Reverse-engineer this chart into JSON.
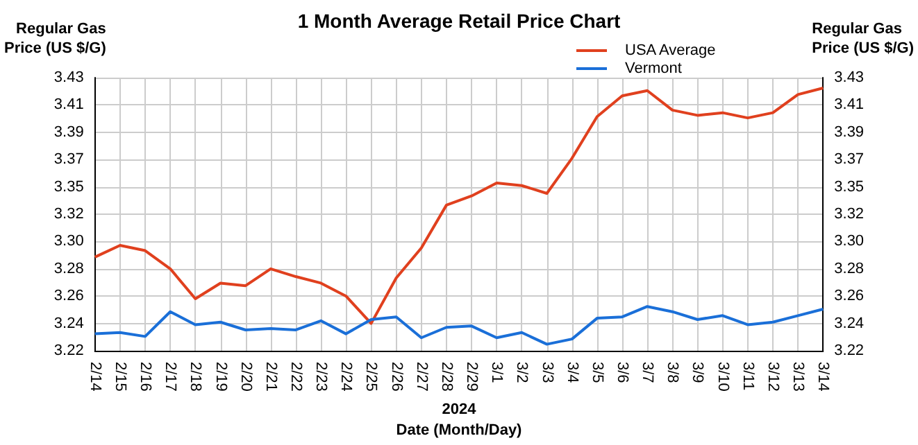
{
  "chart_data": {
    "type": "line",
    "title": "1 Month Average Retail Price Chart",
    "xlabel": "Date (Month/Day)",
    "ylabel": "Regular Gas Price (US $/G)",
    "y2label": "Regular Gas Price (US $/G)",
    "annotations": [
      "2024"
    ],
    "categories": [
      "2/14",
      "2/15",
      "2/16",
      "2/17",
      "2/18",
      "2/19",
      "2/20",
      "2/21",
      "2/22",
      "2/23",
      "2/24",
      "2/25",
      "2/26",
      "2/27",
      "2/28",
      "2/29",
      "3/1",
      "3/2",
      "3/3",
      "3/4",
      "3/5",
      "3/6",
      "3/7",
      "3/8",
      "3/9",
      "3/10",
      "3/11",
      "3/12",
      "3/13",
      "3/14"
    ],
    "series": [
      {
        "name": "USA Average",
        "color": "#e0401e",
        "values": [
          3.292,
          3.301,
          3.297,
          3.283,
          3.26,
          3.272,
          3.27,
          3.283,
          3.277,
          3.272,
          3.262,
          3.241,
          3.276,
          3.299,
          3.332,
          3.339,
          3.349,
          3.347,
          3.341,
          3.368,
          3.4,
          3.416,
          3.42,
          3.405,
          3.401,
          3.403,
          3.399,
          3.403,
          3.417,
          3.422
        ]
      },
      {
        "name": "Vermont",
        "color": "#1a6fd8",
        "values": [
          3.233,
          3.234,
          3.231,
          3.25,
          3.24,
          3.242,
          3.236,
          3.237,
          3.236,
          3.243,
          3.233,
          3.244,
          3.246,
          3.23,
          3.238,
          3.239,
          3.23,
          3.234,
          3.225,
          3.229,
          3.245,
          3.246,
          3.254,
          3.25,
          3.244,
          3.247,
          3.24,
          3.242,
          3.247,
          3.252
        ]
      }
    ],
    "ylim": [
      3.22,
      3.43
    ],
    "yticks": [
      {
        "value": 3.22,
        "label": "3.22"
      },
      {
        "value": 3.241,
        "label": "3.24"
      },
      {
        "value": 3.262,
        "label": "3.26"
      },
      {
        "value": 3.283,
        "label": "3.28"
      },
      {
        "value": 3.304,
        "label": "3.30"
      },
      {
        "value": 3.325,
        "label": "3.32"
      },
      {
        "value": 3.346,
        "label": "3.35"
      },
      {
        "value": 3.367,
        "label": "3.37"
      },
      {
        "value": 3.388,
        "label": "3.39"
      },
      {
        "value": 3.409,
        "label": "3.41"
      },
      {
        "value": 3.43,
        "label": "3.43"
      }
    ],
    "y2lim": [
      3.22,
      3.43
    ],
    "y2ticks": [
      {
        "value": 3.22,
        "label": "3.22"
      },
      {
        "value": 3.241,
        "label": "3.24"
      },
      {
        "value": 3.262,
        "label": "3.26"
      },
      {
        "value": 3.283,
        "label": "3.28"
      },
      {
        "value": 3.304,
        "label": "3.30"
      },
      {
        "value": 3.325,
        "label": "3.32"
      },
      {
        "value": 3.346,
        "label": "3.35"
      },
      {
        "value": 3.367,
        "label": "3.37"
      },
      {
        "value": 3.388,
        "label": "3.39"
      },
      {
        "value": 3.409,
        "label": "3.41"
      },
      {
        "value": 3.43,
        "label": "3.43"
      }
    ],
    "grid": true,
    "legend": "top",
    "marker": "none",
    "line_style": "solid"
  }
}
